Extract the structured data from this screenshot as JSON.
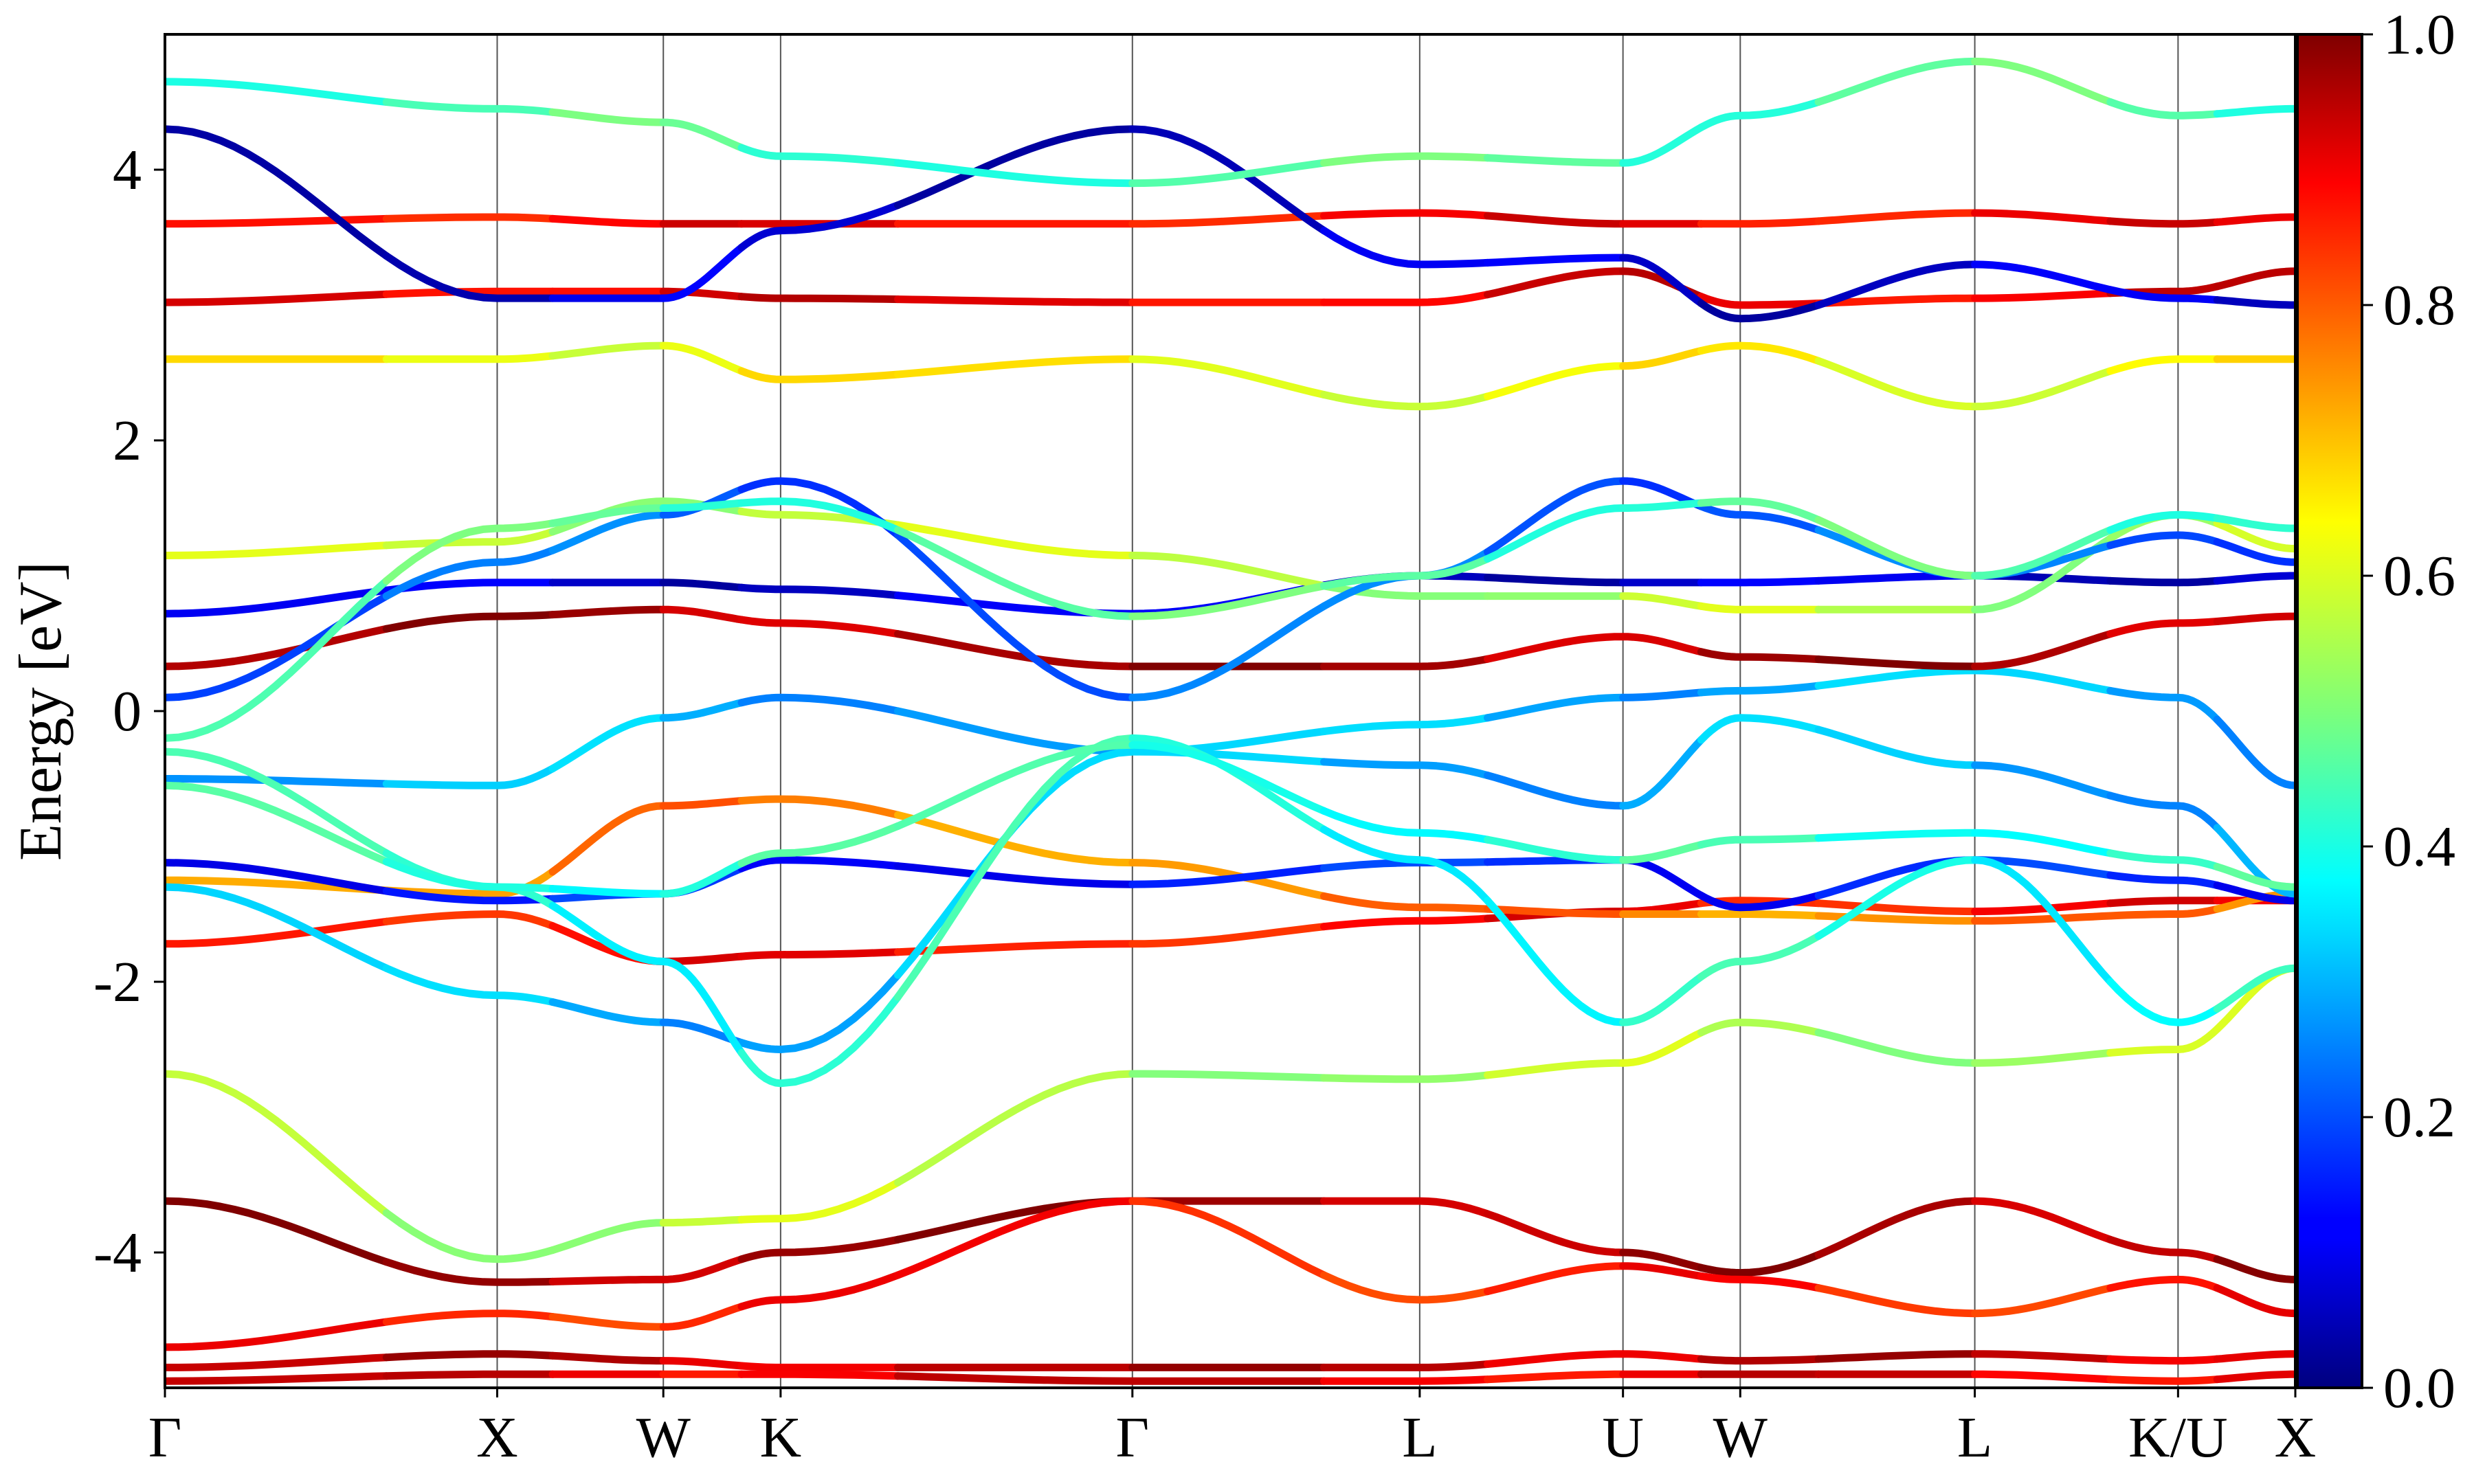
{
  "chart_data": {
    "type": "line",
    "ylabel": "Energy [eV]",
    "ylim": [
      -5,
      5
    ],
    "y_ticks": [
      -4,
      -2,
      0,
      2,
      4
    ],
    "y_tick_labels": [
      "-4",
      "-2",
      "0",
      "2",
      "4"
    ],
    "x_ticks": [
      {
        "pos": 0,
        "label": "Γ"
      },
      {
        "pos": 0.85,
        "label": "X"
      },
      {
        "pos": 1.275,
        "label": "W"
      },
      {
        "pos": 1.575,
        "label": "K"
      },
      {
        "pos": 2.475,
        "label": "Γ"
      },
      {
        "pos": 3.21,
        "label": "L"
      },
      {
        "pos": 3.73,
        "label": "U"
      },
      {
        "pos": 4.03,
        "label": "W"
      },
      {
        "pos": 4.63,
        "label": "L"
      },
      {
        "pos": 5.15,
        "label": "K/U"
      },
      {
        "pos": 5.45,
        "label": "X"
      }
    ],
    "xlim": [
      0,
      5.45
    ],
    "colorbar": {
      "colormap": "jet",
      "range": [
        0.0,
        1.0
      ],
      "ticks": [
        0.0,
        0.2,
        0.4,
        0.6,
        0.8,
        1.0
      ],
      "tick_labels": [
        "0.0",
        "0.2",
        "0.4",
        "0.6",
        "0.8",
        "1.0"
      ]
    },
    "series": [
      {
        "x": [
          0,
          0.85,
          1.275,
          1.575,
          2.475,
          3.21,
          3.73,
          4.03,
          4.63,
          5.15,
          5.45
        ],
        "y": [
          -4.85,
          -4.75,
          -4.8,
          -4.85,
          -4.85,
          -4.85,
          -4.75,
          -4.8,
          -4.75,
          -4.8,
          -4.75
        ],
        "w": 0.93
      },
      {
        "x": [
          0,
          0.85,
          1.275,
          1.575,
          2.475,
          3.21,
          3.73,
          4.03,
          4.63,
          5.15,
          5.45
        ],
        "y": [
          -4.95,
          -4.9,
          -4.9,
          -4.9,
          -4.95,
          -4.95,
          -4.9,
          -4.9,
          -4.9,
          -4.95,
          -4.9
        ],
        "w": 0.9
      },
      {
        "x": [
          0,
          0.85,
          1.275,
          1.575,
          2.475,
          3.21,
          3.73,
          4.03,
          4.63,
          5.15,
          5.45
        ],
        "y": [
          -3.62,
          -4.22,
          -4.2,
          -4.0,
          -3.62,
          -3.62,
          -4.0,
          -4.15,
          -3.62,
          -4.0,
          -4.2
        ],
        "w": 0.96
      },
      {
        "x": [
          0,
          0.85,
          1.275,
          1.575,
          2.475,
          3.21,
          3.73,
          4.03,
          4.63,
          5.15,
          5.45
        ],
        "y": [
          -4.7,
          -4.45,
          -4.55,
          -4.35,
          -3.62,
          -4.35,
          -4.1,
          -4.2,
          -4.45,
          -4.2,
          -4.45
        ],
        "w": 0.85
      },
      {
        "x": [
          0,
          0.85,
          1.275,
          1.575,
          2.475,
          3.21,
          3.73,
          4.03,
          4.63,
          5.15,
          5.45
        ],
        "y": [
          -2.68,
          -4.05,
          -3.78,
          -3.75,
          -2.68,
          -2.72,
          -2.6,
          -2.3,
          -2.6,
          -2.5,
          -1.9
        ],
        "w": 0.55
      },
      {
        "x": [
          0,
          0.85,
          1.275,
          1.575,
          2.475,
          3.21,
          3.73,
          4.03,
          4.63,
          5.15,
          5.45
        ],
        "y": [
          -1.72,
          -1.5,
          -1.85,
          -1.8,
          -1.72,
          -1.55,
          -1.48,
          -1.4,
          -1.48,
          -1.4,
          -1.4
        ],
        "w": 0.87
      },
      {
        "x": [
          0,
          0.85,
          1.275,
          1.575,
          2.475,
          3.21,
          3.73,
          4.03,
          4.63,
          5.15,
          5.45
        ],
        "y": [
          -1.25,
          -1.35,
          -0.7,
          -0.65,
          -1.12,
          -1.45,
          -1.5,
          -1.5,
          -1.55,
          -1.5,
          -1.35
        ],
        "w": 0.75
      },
      {
        "x": [
          0,
          0.85,
          1.275,
          1.575,
          2.475,
          3.21,
          3.73,
          4.03,
          4.63,
          5.15,
          5.45
        ],
        "y": [
          -1.12,
          -1.4,
          -1.35,
          -1.1,
          -1.28,
          -1.12,
          -1.1,
          -1.45,
          -1.1,
          -1.25,
          -1.4
        ],
        "w": 0.15
      },
      {
        "x": [
          0,
          0.85,
          1.275,
          1.575,
          2.475,
          3.21,
          3.73,
          4.03,
          4.63,
          5.15,
          5.45
        ],
        "y": [
          -0.5,
          -0.55,
          -0.05,
          0.1,
          -0.3,
          -0.1,
          0.1,
          0.15,
          0.3,
          0.1,
          -0.55
        ],
        "w": 0.3
      },
      {
        "x": [
          0,
          0.85,
          1.275,
          1.575,
          2.475,
          3.21,
          3.73,
          4.03,
          4.63,
          5.15,
          5.45
        ],
        "y": [
          0.33,
          0.7,
          0.75,
          0.65,
          0.33,
          0.33,
          0.55,
          0.4,
          0.33,
          0.65,
          0.7
        ],
        "w": 0.95
      },
      {
        "x": [
          0,
          0.85,
          1.275,
          1.575,
          2.475,
          3.21,
          3.73,
          4.03,
          4.63,
          5.15,
          5.45
        ],
        "y": [
          0.72,
          0.95,
          0.95,
          0.9,
          0.72,
          1.0,
          0.95,
          0.95,
          1.0,
          0.95,
          1.0
        ],
        "w": 0.08
      },
      {
        "x": [
          0,
          0.85,
          1.275,
          1.575,
          2.475,
          3.21,
          3.73,
          4.03,
          4.63,
          5.15,
          5.45
        ],
        "y": [
          1.15,
          1.25,
          1.55,
          1.45,
          1.15,
          0.85,
          0.85,
          0.75,
          0.75,
          1.45,
          1.2
        ],
        "w": 0.55
      },
      {
        "x": [
          0,
          0.85,
          1.275,
          1.575,
          2.475,
          3.21,
          3.73,
          4.03,
          4.63,
          5.15,
          5.45
        ],
        "y": [
          2.6,
          2.6,
          2.7,
          2.45,
          2.6,
          2.25,
          2.55,
          2.7,
          2.25,
          2.6,
          2.6
        ],
        "w": 0.62
      },
      {
        "x": [
          0,
          0.85,
          1.275,
          1.575,
          2.475,
          3.21,
          3.73,
          4.03,
          4.63,
          5.15,
          5.45
        ],
        "y": [
          3.02,
          3.1,
          3.1,
          3.05,
          3.02,
          3.02,
          3.25,
          3.0,
          3.05,
          3.1,
          3.25
        ],
        "w": 0.9
      },
      {
        "x": [
          0,
          0.85,
          1.275,
          1.575,
          2.475,
          3.21,
          3.73,
          4.03,
          4.63,
          5.15,
          5.45
        ],
        "y": [
          3.6,
          3.65,
          3.6,
          3.6,
          3.6,
          3.68,
          3.6,
          3.6,
          3.68,
          3.6,
          3.65
        ],
        "w": 0.88
      },
      {
        "x": [
          0,
          0.85,
          1.275,
          1.575,
          2.475,
          3.21,
          3.73,
          4.03,
          4.63,
          5.15,
          5.45
        ],
        "y": [
          4.3,
          3.05,
          3.05,
          3.55,
          4.3,
          3.3,
          3.35,
          2.9,
          3.3,
          3.05,
          3.0
        ],
        "w": 0.08
      },
      {
        "x": [
          0,
          0.85,
          1.275,
          1.575,
          2.475,
          3.21,
          3.73,
          4.03,
          4.63,
          5.15,
          5.45
        ],
        "y": [
          4.65,
          4.45,
          4.35,
          4.1,
          3.9,
          4.1,
          4.05,
          4.4,
          4.8,
          4.4,
          4.45
        ],
        "w": 0.45
      },
      {
        "x": [
          0,
          0.85,
          1.275,
          1.575,
          2.475,
          3.21,
          3.73,
          4.03,
          4.63,
          5.15,
          5.45
        ],
        "y": [
          0.1,
          1.1,
          1.45,
          1.7,
          0.1,
          1.0,
          1.7,
          1.45,
          1.0,
          1.3,
          1.1
        ],
        "w": 0.22
      },
      {
        "x": [
          0,
          0.85,
          1.275,
          1.575,
          2.475,
          3.21,
          3.73,
          4.03,
          4.63,
          5.15,
          5.45
        ],
        "y": [
          -0.2,
          1.35,
          1.5,
          1.55,
          0.7,
          1.0,
          1.5,
          1.55,
          1.0,
          1.45,
          1.35
        ],
        "w": 0.45
      },
      {
        "x": [
          0,
          0.85,
          1.275,
          1.575,
          2.475,
          3.21,
          3.73,
          4.03,
          4.63,
          5.15,
          5.45
        ],
        "y": [
          -1.3,
          -2.1,
          -2.3,
          -2.5,
          -0.3,
          -0.4,
          -0.7,
          -0.05,
          -0.4,
          -0.7,
          -1.35
        ],
        "w": 0.3
      },
      {
        "x": [
          0,
          0.85,
          1.275,
          1.575,
          2.475,
          3.21,
          3.73,
          4.03,
          4.63,
          5.15,
          5.45
        ],
        "y": [
          -0.3,
          -1.3,
          -1.85,
          -2.75,
          -0.2,
          -1.1,
          -2.3,
          -1.85,
          -1.1,
          -2.3,
          -1.9
        ],
        "w": 0.4
      },
      {
        "x": [
          0,
          0.85,
          1.275,
          1.575,
          2.475,
          3.21,
          3.73,
          4.03,
          4.63,
          5.15,
          5.45
        ],
        "y": [
          -0.55,
          -1.3,
          -1.35,
          -1.05,
          -0.25,
          -0.9,
          -1.1,
          -0.95,
          -0.9,
          -1.1,
          -1.3
        ],
        "w": 0.42
      }
    ]
  }
}
